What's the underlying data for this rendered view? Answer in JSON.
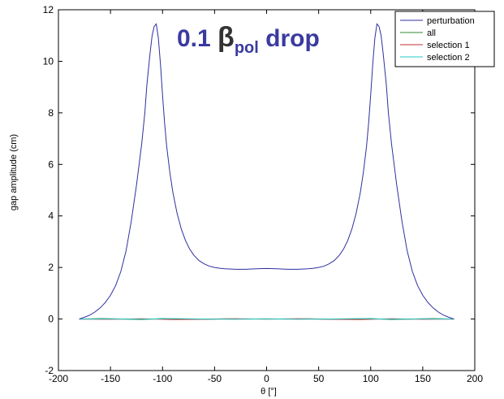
{
  "chart_data": {
    "type": "line",
    "title": {
      "prefix": "0.1 ",
      "symbol": "β",
      "subscript": "pol",
      "suffix": " drop",
      "prefix_color": "#3a3aa0",
      "symbol_color": "#333333"
    },
    "xlabel": "θ [°]",
    "ylabel": "gap amplitude (cm)",
    "xlim": [
      -200,
      200
    ],
    "ylim": [
      -2,
      12
    ],
    "xticks": [
      -200,
      -150,
      -100,
      -50,
      0,
      50,
      100,
      150,
      200
    ],
    "yticks": [
      -2,
      0,
      2,
      4,
      6,
      8,
      10,
      12
    ],
    "legend_position": "top-right",
    "grid": false,
    "series": [
      {
        "name": "perturbation",
        "color": "#2f2fa0",
        "x": [
          -180,
          -175,
          -170,
          -165,
          -160,
          -155,
          -150,
          -145,
          -140,
          -135,
          -130,
          -125,
          -120,
          -117,
          -115,
          -112,
          -110,
          -108,
          -106,
          -104,
          -102,
          -100,
          -98,
          -96,
          -93,
          -90,
          -86,
          -82,
          -78,
          -74,
          -70,
          -65,
          -60,
          -55,
          -50,
          -45,
          -40,
          -30,
          -20,
          -10,
          0,
          10,
          20,
          30,
          40,
          45,
          50,
          55,
          60,
          65,
          70,
          74,
          78,
          82,
          86,
          90,
          93,
          96,
          98,
          100,
          102,
          104,
          106,
          108,
          110,
          112,
          115,
          117,
          120,
          125,
          130,
          135,
          140,
          145,
          150,
          155,
          160,
          165,
          170,
          175,
          180
        ],
        "values": [
          0.0,
          0.07,
          0.15,
          0.27,
          0.43,
          0.64,
          0.92,
          1.3,
          1.85,
          2.65,
          3.8,
          5.2,
          6.8,
          8.0,
          9.1,
          10.3,
          11.0,
          11.35,
          11.45,
          10.9,
          9.9,
          8.7,
          7.6,
          6.7,
          5.7,
          4.9,
          4.1,
          3.5,
          3.05,
          2.72,
          2.48,
          2.27,
          2.14,
          2.05,
          2.0,
          1.97,
          1.95,
          1.93,
          1.93,
          1.95,
          1.96,
          1.95,
          1.93,
          1.93,
          1.95,
          1.97,
          2.0,
          2.05,
          2.14,
          2.27,
          2.48,
          2.72,
          3.05,
          3.5,
          4.1,
          4.9,
          5.7,
          6.7,
          7.6,
          8.7,
          9.9,
          10.9,
          11.45,
          11.35,
          11.0,
          10.3,
          9.1,
          8.0,
          6.8,
          5.2,
          3.8,
          2.65,
          1.85,
          1.3,
          0.92,
          0.64,
          0.43,
          0.27,
          0.15,
          0.07,
          0.0
        ]
      },
      {
        "name": "all",
        "color": "#2e8b2e",
        "x": [
          -180,
          -160,
          -140,
          -120,
          -100,
          -80,
          -60,
          -40,
          -20,
          0,
          20,
          40,
          60,
          80,
          100,
          120,
          140,
          160,
          180
        ],
        "values": [
          0.0,
          0.02,
          0.0,
          -0.02,
          0.02,
          0.0,
          -0.01,
          0.01,
          0.0,
          0.0,
          0.0,
          0.01,
          -0.01,
          0.0,
          0.02,
          -0.02,
          0.0,
          0.02,
          0.0
        ]
      },
      {
        "name": "selection 1",
        "color": "#c03030",
        "x": [
          -180,
          -150,
          -120,
          -90,
          -60,
          -30,
          0,
          30,
          60,
          90,
          120,
          150,
          180
        ],
        "values": [
          0.0,
          -0.01,
          0.01,
          -0.02,
          -0.01,
          0.01,
          0.0,
          0.01,
          -0.01,
          -0.02,
          0.01,
          -0.01,
          0.0
        ]
      },
      {
        "name": "selection 2",
        "color": "#20c8c8",
        "x": [
          -180,
          -150,
          -120,
          -90,
          -60,
          -30,
          0,
          30,
          60,
          90,
          120,
          150,
          180
        ],
        "values": [
          0.0,
          0.01,
          -0.01,
          0.02,
          0.0,
          -0.01,
          0.01,
          -0.01,
          0.0,
          0.02,
          -0.01,
          0.01,
          0.0
        ]
      }
    ]
  }
}
